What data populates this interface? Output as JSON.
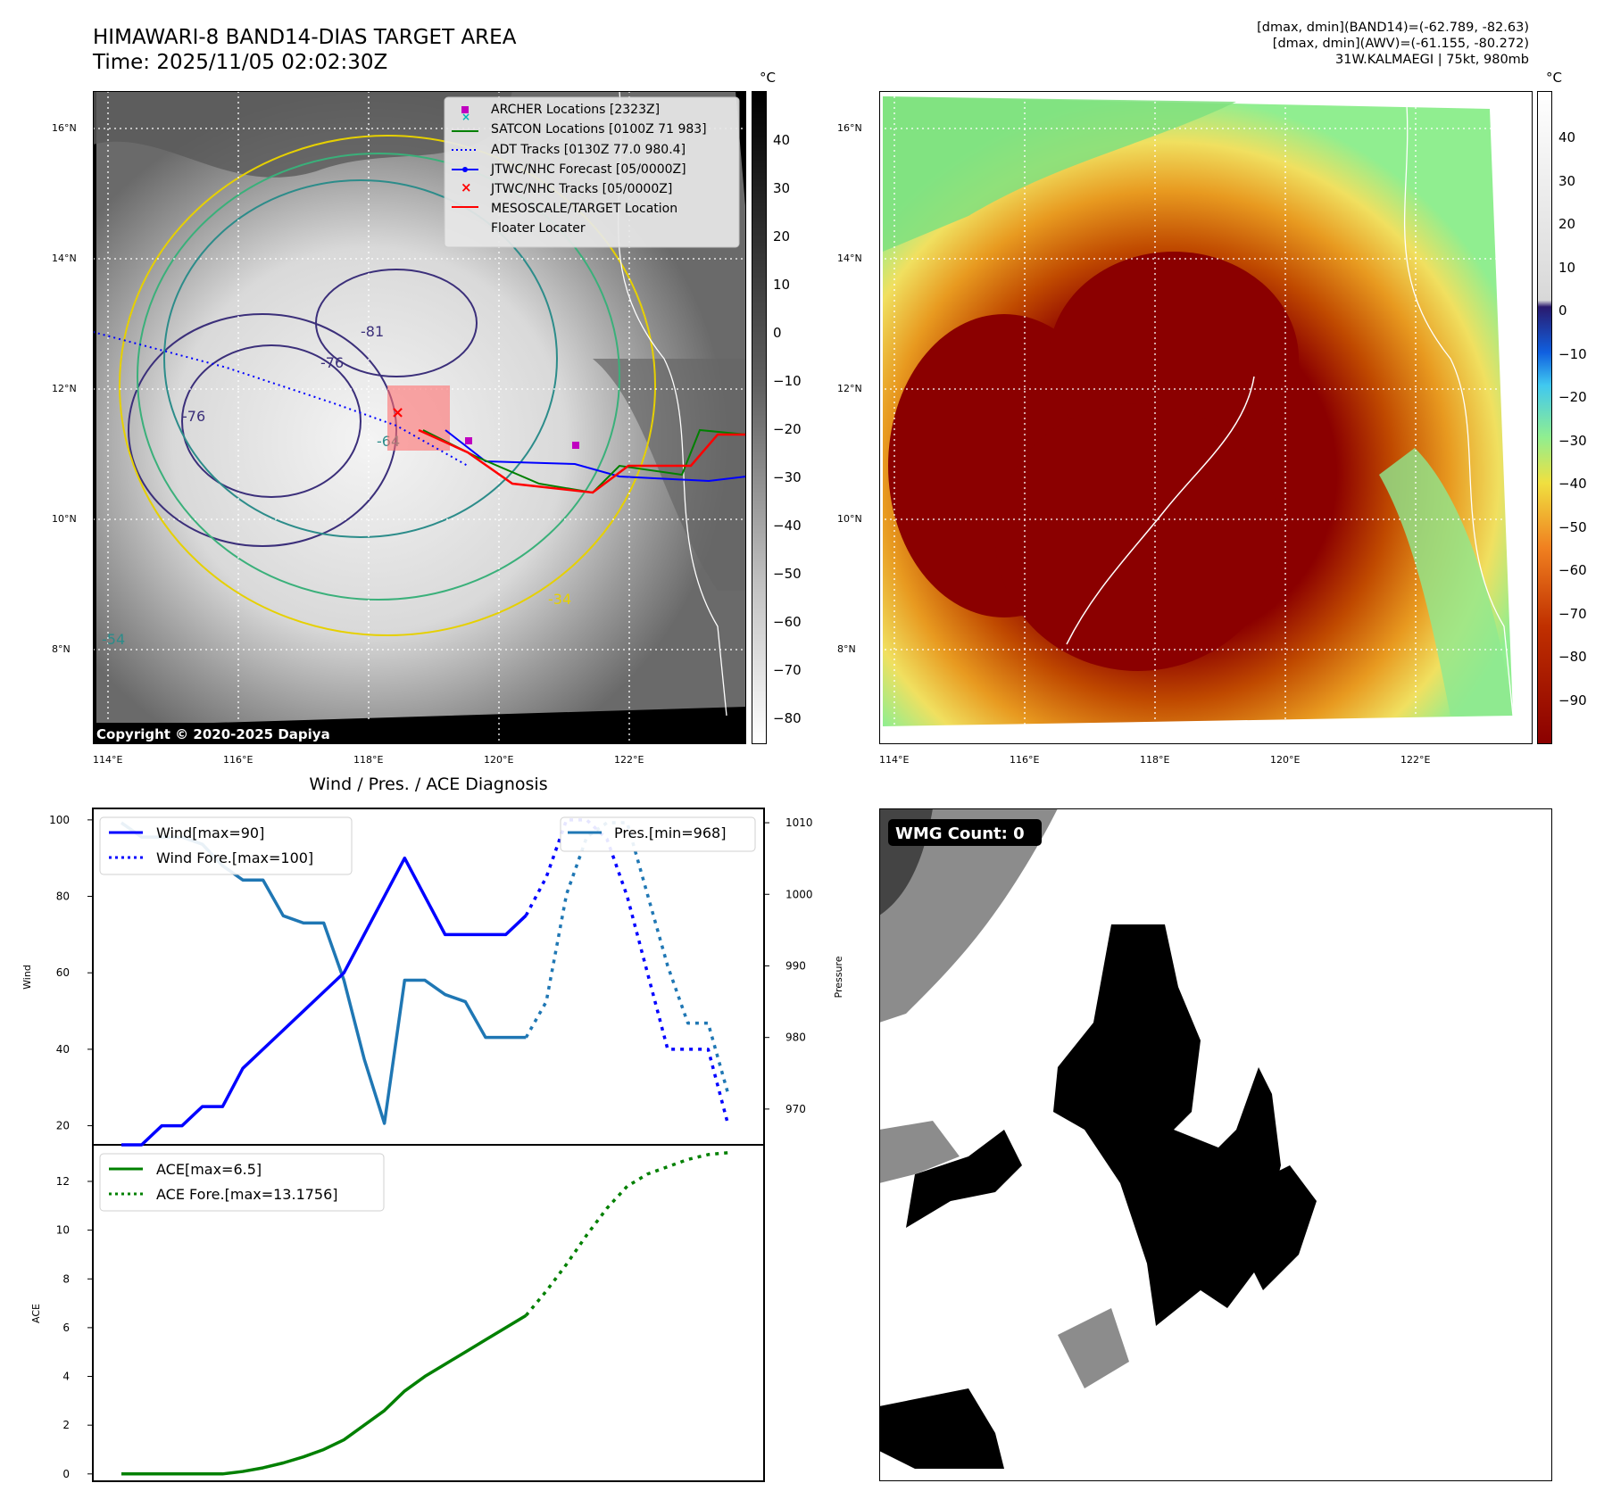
{
  "header": {
    "title_line1": "HIMAWARI-8 BAND14-DIAS TARGET AREA",
    "title_line2": "Time: 2025/11/05 02:02:30Z",
    "right_line1": "[dmax, dmin](BAND14)=(-62.789, -82.63)",
    "right_line2": "[dmax, dmin](AWV)=(-61.155, -80.272)",
    "right_line3": "31W.KALMAEGI | 75kt, 980mb"
  },
  "map_axes": {
    "lon_ticks": [
      "114°E",
      "116°E",
      "118°E",
      "120°E",
      "122°E"
    ],
    "lat_ticks": [
      "16°N",
      "14°N",
      "12°N",
      "10°N",
      "8°N"
    ],
    "copyright": "Copyright © 2020-2025 Dapiya",
    "contour_labels": [
      "-76",
      "-81",
      "-76",
      "-64",
      "-54",
      "-34"
    ]
  },
  "legend_map": [
    {
      "label": "ARCHER Locations [2323Z]",
      "color": "#c000c0",
      "marker": "square"
    },
    {
      "label": "SATCON Locations [0100Z 71 983]",
      "color": "#00b8b8",
      "marker": "x"
    },
    {
      "label": "ADT Tracks [0130Z 77.0 980.4]",
      "color": "#008000",
      "marker": "line"
    },
    {
      "label": "JTWC/NHC Forecast [05/0000Z]",
      "color": "#0000ff",
      "marker": "dotted"
    },
    {
      "label": "JTWC/NHC Tracks [05/0000Z]",
      "color": "#0000ff",
      "marker": "line-dot"
    },
    {
      "label": "MESOSCALE/TARGET Location",
      "color": "#ff0000",
      "marker": "x"
    },
    {
      "label": "Floater Locater",
      "color": "#ff0000",
      "marker": "line"
    }
  ],
  "colorbar_gray": {
    "unit": "°C",
    "ticks": [
      "40",
      "30",
      "20",
      "10",
      "0",
      "−10",
      "−20",
      "−30",
      "−40",
      "−50",
      "−60",
      "−70",
      "−80"
    ]
  },
  "colorbar_color": {
    "unit": "°C",
    "ticks": [
      "40",
      "30",
      "20",
      "10",
      "0",
      "−10",
      "−20",
      "−30",
      "−40",
      "−50",
      "−60",
      "−70",
      "−80",
      "−90"
    ]
  },
  "wmg": {
    "label": "WMG Count: 0"
  },
  "chart_data": [
    {
      "type": "line",
      "title": "Wind / Pres. / ACE Diagnosis",
      "ylabel": "Wind",
      "ylabel_right": "Pressure",
      "ylim": [
        15,
        103
      ],
      "ylim_right": [
        965,
        1012
      ],
      "yticks": [
        "100",
        "80",
        "60",
        "40",
        "20"
      ],
      "yticks_right": [
        "1010",
        "1000",
        "990",
        "980",
        "970"
      ],
      "series": [
        {
          "name": "Wind[max=90]",
          "color": "#0000ff",
          "style": "solid",
          "x": [
            0,
            1,
            2,
            3,
            4,
            5,
            6,
            7,
            8,
            9,
            10,
            11,
            12,
            13,
            14,
            15,
            16,
            17,
            18,
            19,
            20
          ],
          "values": [
            15,
            15,
            20,
            20,
            25,
            25,
            35,
            40,
            45,
            50,
            55,
            60,
            70,
            80,
            90,
            80,
            70,
            70,
            70,
            70,
            75
          ]
        },
        {
          "name": "Wind Fore.[max=100]",
          "color": "#0000ff",
          "style": "dotted",
          "x": [
            20,
            21,
            22,
            23,
            24,
            25,
            26,
            27,
            28,
            29,
            30
          ],
          "values": [
            75,
            85,
            100,
            100,
            95,
            80,
            60,
            40,
            40,
            40,
            20
          ]
        },
        {
          "name": "Pres.[min=968]",
          "color": "#1f77b4",
          "style": "solid",
          "axis": "right",
          "x": [
            0,
            1,
            2,
            3,
            4,
            5,
            6,
            7,
            8,
            9,
            10,
            11,
            12,
            13,
            14,
            15,
            16,
            17,
            18,
            19,
            20
          ],
          "values": [
            1010,
            1008,
            1008,
            1008,
            1007,
            1004,
            1002,
            1002,
            997,
            996,
            996,
            988,
            977,
            968,
            988,
            988,
            986,
            985,
            980,
            980,
            980
          ]
        },
        {
          "name": "Pres. Fore.",
          "color": "#1f77b4",
          "style": "dotted",
          "axis": "right",
          "legend": false,
          "x": [
            20,
            21,
            22,
            23,
            24,
            25,
            26,
            27,
            28,
            29,
            30
          ],
          "values": [
            980,
            985,
            1000,
            1008,
            1010,
            1010,
            1000,
            990,
            982,
            982,
            972
          ]
        }
      ]
    },
    {
      "type": "line",
      "ylabel": "ACE",
      "ylim": [
        -0.3,
        13.5
      ],
      "yticks": [
        "12",
        "10",
        "8",
        "6",
        "4",
        "2",
        "0"
      ],
      "series": [
        {
          "name": "ACE[max=6.5]",
          "color": "#008000",
          "style": "solid",
          "x": [
            0,
            1,
            2,
            3,
            4,
            5,
            6,
            7,
            8,
            9,
            10,
            11,
            12,
            13,
            14,
            15,
            16,
            17,
            18,
            19,
            20
          ],
          "values": [
            0,
            0,
            0,
            0,
            0,
            0,
            0.1,
            0.25,
            0.45,
            0.7,
            1.0,
            1.4,
            2.0,
            2.6,
            3.4,
            4.0,
            4.5,
            5.0,
            5.5,
            6.0,
            6.5
          ]
        },
        {
          "name": "ACE Fore.[max=13.1756]",
          "color": "#008000",
          "style": "dotted",
          "x": [
            20,
            21,
            22,
            23,
            24,
            25,
            26,
            27,
            28,
            29,
            30
          ],
          "values": [
            6.5,
            7.5,
            8.6,
            9.8,
            10.9,
            11.8,
            12.3,
            12.6,
            12.9,
            13.1,
            13.18
          ]
        }
      ]
    }
  ]
}
